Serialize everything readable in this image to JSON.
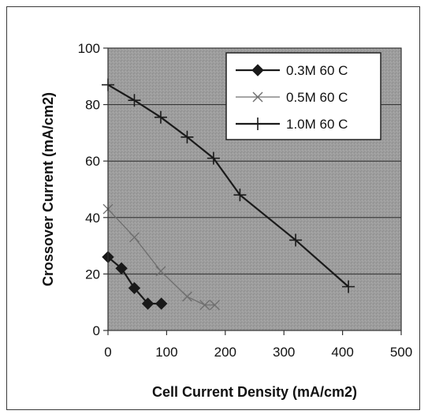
{
  "chart_data": {
    "type": "line",
    "title": "",
    "xlabel": "Cell Current Density (mA/cm2)",
    "ylabel": "Crossover Current (mA/cm2)",
    "xlim": [
      0,
      500
    ],
    "ylim": [
      0,
      100
    ],
    "xticks": [
      "0",
      "100",
      "200",
      "300",
      "400",
      "500"
    ],
    "yticks": [
      "0",
      "20",
      "40",
      "60",
      "80",
      "100"
    ],
    "grid": "horizontal",
    "legend_position": "top-right",
    "plot_background": "#9d9d9d",
    "series": [
      {
        "name": "0.3M 60 C",
        "marker": "diamond",
        "color": "#1a1a1a",
        "x": [
          0,
          23,
          45,
          68,
          91
        ],
        "y": [
          26,
          22,
          15,
          9.5,
          9.5
        ]
      },
      {
        "name": "0.5M 60 C",
        "marker": "x",
        "color": "#6f6f6f",
        "x": [
          0,
          45,
          90,
          135,
          165,
          182
        ],
        "y": [
          43,
          33,
          21,
          12,
          9,
          9
        ]
      },
      {
        "name": "1.0M 60 C",
        "marker": "plus",
        "color": "#1a1a1a",
        "x": [
          0,
          45,
          90,
          135,
          180,
          225,
          320,
          410
        ],
        "y": [
          87,
          81.5,
          75.5,
          68.5,
          61,
          48,
          32,
          15.5
        ]
      }
    ]
  }
}
